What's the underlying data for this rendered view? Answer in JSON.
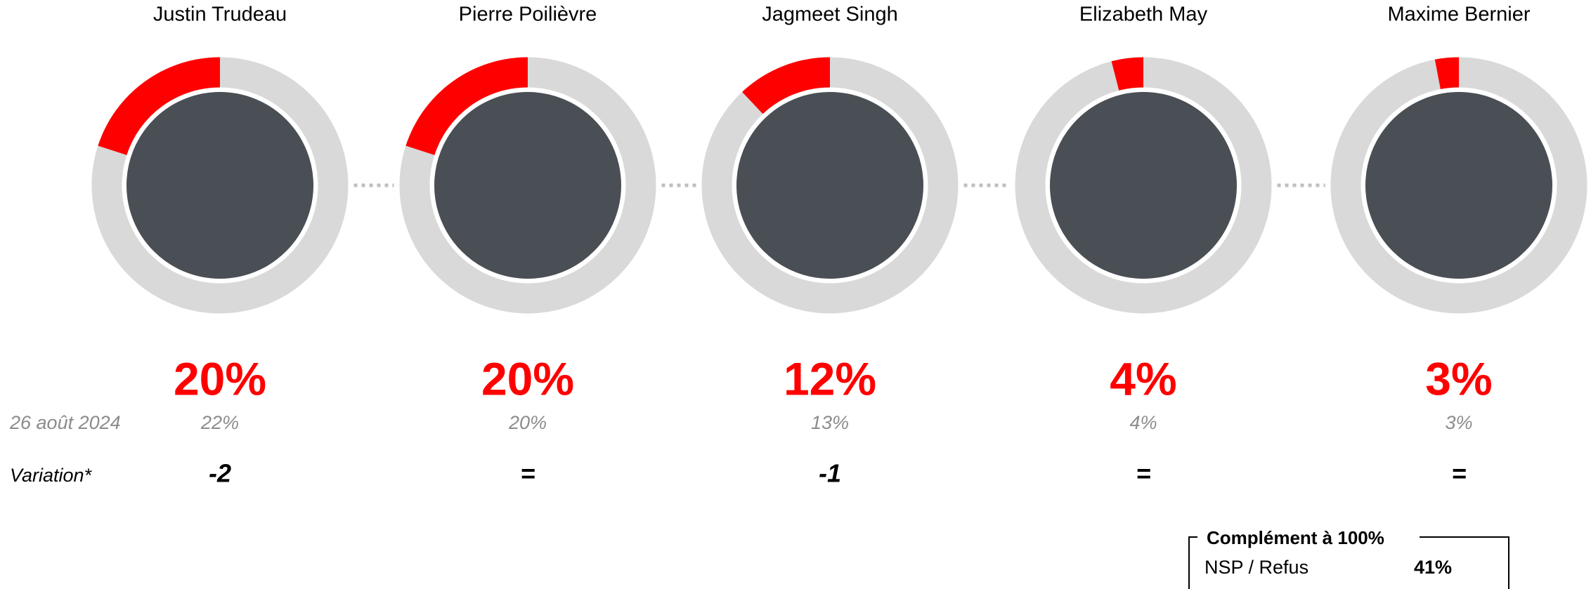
{
  "chart_data": {
    "type": "donut",
    "categories": [
      "Justin Trudeau",
      "Pierre Poilièvre",
      "Jagmeet Singh",
      "Elizabeth May",
      "Maxime Bernier"
    ],
    "values": [
      20,
      20,
      12,
      4,
      3
    ],
    "value_labels": [
      "20%",
      "20%",
      "12%",
      "4%",
      "3%"
    ],
    "color": "#ff0000",
    "track_color": "#d9d9d9",
    "previous_label": "26 août 2024",
    "previous": [
      "22%",
      "20%",
      "13%",
      "4%",
      "3%"
    ],
    "variation_label": "Variation*",
    "variation": [
      "-2",
      "=",
      "-1",
      "=",
      "="
    ],
    "complement": {
      "title": "Complément à 100%",
      "label": "NSP / Refus",
      "value_label": "41%"
    }
  }
}
